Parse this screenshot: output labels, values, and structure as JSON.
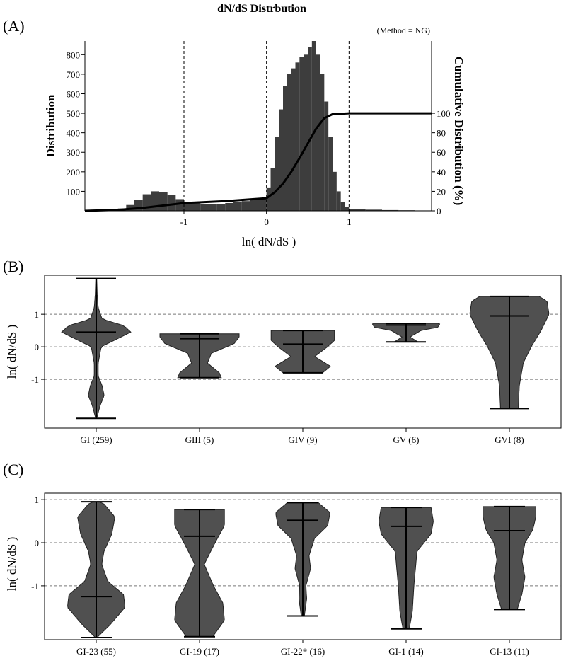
{
  "title": "dN/dS Distrbution",
  "panels": {
    "A": {
      "letter": "(A)",
      "annotation": "(Method = NG)",
      "ylabel_left": "Distribution",
      "ylabel_right": "Cumulative Distribution (%)",
      "xlabel": "ln( dN/dS )"
    },
    "B": {
      "letter": "(B)",
      "ylabel": "ln( dN/dS )"
    },
    "C": {
      "letter": "(C)",
      "ylabel": "ln( dN/dS )"
    }
  },
  "chart_data": [
    {
      "type": "bar",
      "subtype": "histogram-with-cumulative-line",
      "title": "dN/dS Distrbution",
      "xlabel": "ln( dN/dS )",
      "ylabel": "Distribution",
      "ylabel_right": "Cumulative Distribution (%)",
      "annotation": "(Method = NG)",
      "xlim": [
        -2.2,
        2.0
      ],
      "ylim": [
        0,
        870
      ],
      "ylim_right": [
        0,
        174
      ],
      "xticks": [
        -1,
        0,
        1
      ],
      "yticks_left": [
        100,
        200,
        300,
        400,
        500,
        600,
        700,
        800
      ],
      "yticks_right": [
        0,
        20,
        40,
        60,
        80,
        100
      ],
      "vlines": [
        -1,
        0,
        1
      ],
      "histogram": {
        "x": [
          -2.0,
          -1.9,
          -1.8,
          -1.7,
          -1.6,
          -1.5,
          -1.4,
          -1.3,
          -1.2,
          -1.1,
          -1.0,
          -0.9,
          -0.8,
          -0.7,
          -0.6,
          -0.5,
          -0.4,
          -0.3,
          -0.2,
          -0.1,
          0.0,
          0.05,
          0.1,
          0.15,
          0.2,
          0.25,
          0.3,
          0.35,
          0.4,
          0.45,
          0.5,
          0.55,
          0.6,
          0.65,
          0.7,
          0.75,
          0.8,
          0.85,
          0.9,
          0.95,
          1.0,
          1.1,
          1.2,
          1.4,
          1.6,
          1.8
        ],
        "counts": [
          3,
          6,
          12,
          30,
          55,
          85,
          100,
          95,
          82,
          60,
          45,
          38,
          35,
          33,
          35,
          40,
          45,
          50,
          55,
          60,
          120,
          220,
          380,
          520,
          640,
          700,
          730,
          760,
          790,
          800,
          840,
          870,
          800,
          700,
          560,
          380,
          200,
          100,
          45,
          20,
          10,
          8,
          6,
          4,
          3,
          2
        ]
      },
      "cumulative": {
        "x": [
          -2.2,
          -1.8,
          -1.5,
          -1.2,
          -1.0,
          -0.5,
          0.0,
          0.1,
          0.2,
          0.3,
          0.4,
          0.5,
          0.6,
          0.7,
          0.8,
          1.0,
          1.5,
          2.0
        ],
        "y": [
          0,
          1,
          3,
          6,
          8,
          10,
          13,
          19,
          28,
          40,
          54,
          69,
          84,
          95,
          99,
          100,
          100,
          100
        ]
      }
    },
    {
      "type": "violin",
      "ylabel": "ln( dN/dS )",
      "ylim": [
        -2.5,
        2.2
      ],
      "yticks": [
        -1,
        0,
        1
      ],
      "hlines": [
        -1,
        0,
        1
      ],
      "categories": [
        "GI (259)",
        "GIII (5)",
        "GIV (9)",
        "GV (6)",
        "GVI (8)"
      ],
      "violins": [
        {
          "min": -2.2,
          "max": 2.1,
          "median": 0.45,
          "halfwidth": 0.2,
          "profile": [
            [
              -2.2,
              0.005
            ],
            [
              -1.8,
              0.04
            ],
            [
              -1.5,
              0.08
            ],
            [
              -1.2,
              0.06
            ],
            [
              -0.9,
              0.02
            ],
            [
              -0.5,
              0.02
            ],
            [
              0.0,
              0.05
            ],
            [
              0.3,
              0.25
            ],
            [
              0.45,
              0.35
            ],
            [
              0.65,
              0.28
            ],
            [
              0.85,
              0.06
            ],
            [
              1.2,
              0.02
            ],
            [
              1.6,
              0.01
            ],
            [
              2.1,
              0.005
            ]
          ]
        },
        {
          "min": -0.95,
          "max": 0.4,
          "median": 0.25,
          "halfwidth": 0.2,
          "profile": [
            [
              -0.95,
              0.22
            ],
            [
              -0.8,
              0.2
            ],
            [
              -0.5,
              0.08
            ],
            [
              -0.2,
              0.12
            ],
            [
              0.1,
              0.35
            ],
            [
              0.3,
              0.4
            ],
            [
              0.4,
              0.4
            ]
          ]
        },
        {
          "min": -0.8,
          "max": 0.5,
          "median": 0.08,
          "halfwidth": 0.2,
          "profile": [
            [
              -0.8,
              0.2
            ],
            [
              -0.6,
              0.28
            ],
            [
              -0.3,
              0.12
            ],
            [
              0.0,
              0.25
            ],
            [
              0.2,
              0.32
            ],
            [
              0.5,
              0.32
            ]
          ]
        },
        {
          "min": 0.15,
          "max": 0.72,
          "median": 0.67,
          "halfwidth": 0.2,
          "profile": [
            [
              0.15,
              0.12
            ],
            [
              0.3,
              0.04
            ],
            [
              0.5,
              0.15
            ],
            [
              0.6,
              0.32
            ],
            [
              0.7,
              0.34
            ],
            [
              0.72,
              0.32
            ]
          ]
        },
        {
          "min": -1.9,
          "max": 1.55,
          "median": 0.95,
          "halfwidth": 0.2,
          "profile": [
            [
              -1.9,
              0.09
            ],
            [
              -1.2,
              0.1
            ],
            [
              -0.5,
              0.14
            ],
            [
              0.0,
              0.22
            ],
            [
              0.5,
              0.32
            ],
            [
              1.0,
              0.4
            ],
            [
              1.4,
              0.38
            ],
            [
              1.55,
              0.3
            ]
          ]
        }
      ]
    },
    {
      "type": "violin",
      "ylabel": "ln( dN/dS )",
      "ylim": [
        -2.25,
        1.15
      ],
      "yticks": [
        -1,
        0,
        1
      ],
      "hlines": [
        -1,
        0,
        1
      ],
      "categories": [
        "GI-23 (55)",
        "GI-19 (17)",
        "GI-22* (16)",
        "GI-1 (14)",
        "GI-13 (11)"
      ],
      "violins": [
        {
          "min": -2.2,
          "max": 0.95,
          "median": -1.25,
          "halfwidth": 0.2,
          "profile": [
            [
              -2.2,
              0.01
            ],
            [
              -1.9,
              0.18
            ],
            [
              -1.5,
              0.37
            ],
            [
              -1.2,
              0.35
            ],
            [
              -0.9,
              0.15
            ],
            [
              -0.5,
              0.07
            ],
            [
              -0.2,
              0.1
            ],
            [
              0.2,
              0.2
            ],
            [
              0.6,
              0.24
            ],
            [
              0.9,
              0.1
            ],
            [
              0.95,
              0.04
            ]
          ]
        },
        {
          "min": -2.18,
          "max": 0.77,
          "median": 0.15,
          "halfwidth": 0.2,
          "profile": [
            [
              -2.18,
              0.17
            ],
            [
              -1.8,
              0.32
            ],
            [
              -1.4,
              0.3
            ],
            [
              -1.0,
              0.18
            ],
            [
              -0.5,
              0.06
            ],
            [
              0.0,
              0.2
            ],
            [
              0.4,
              0.32
            ],
            [
              0.77,
              0.32
            ]
          ]
        },
        {
          "min": -1.7,
          "max": 0.93,
          "median": 0.52,
          "halfwidth": 0.2,
          "profile": [
            [
              -1.7,
              0.02
            ],
            [
              -1.3,
              0.05
            ],
            [
              -1.0,
              0.04
            ],
            [
              -0.6,
              0.1
            ],
            [
              -0.3,
              0.08
            ],
            [
              0.1,
              0.15
            ],
            [
              0.4,
              0.32
            ],
            [
              0.7,
              0.35
            ],
            [
              0.93,
              0.2
            ]
          ]
        },
        {
          "min": -2.0,
          "max": 0.82,
          "median": 0.38,
          "halfwidth": 0.2,
          "profile": [
            [
              -2.0,
              0.04
            ],
            [
              -1.6,
              0.08
            ],
            [
              -1.0,
              0.1
            ],
            [
              -0.6,
              0.12
            ],
            [
              -0.2,
              0.14
            ],
            [
              0.2,
              0.32
            ],
            [
              0.5,
              0.35
            ],
            [
              0.82,
              0.32
            ]
          ]
        },
        {
          "min": -1.55,
          "max": 0.84,
          "median": 0.28,
          "halfwidth": 0.2,
          "profile": [
            [
              -1.55,
              0.1
            ],
            [
              -1.2,
              0.16
            ],
            [
              -0.8,
              0.2
            ],
            [
              -0.4,
              0.16
            ],
            [
              0.0,
              0.2
            ],
            [
              0.3,
              0.3
            ],
            [
              0.6,
              0.34
            ],
            [
              0.84,
              0.34
            ]
          ]
        }
      ]
    }
  ]
}
